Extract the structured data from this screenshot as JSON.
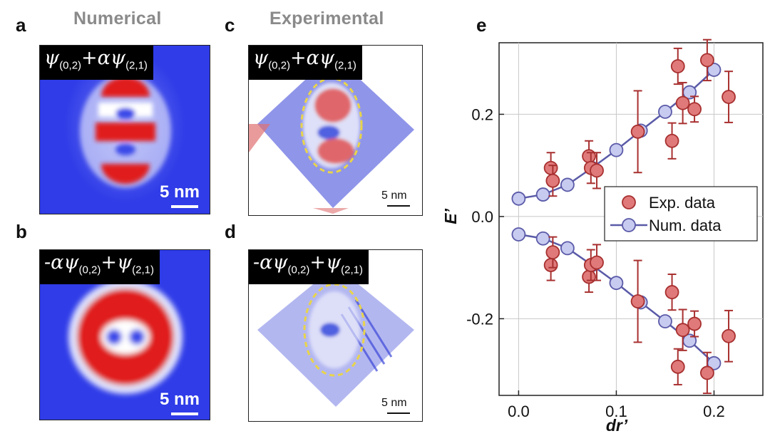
{
  "panels": {
    "a": {
      "letter": "a",
      "column_title": "Numerical",
      "formula_left": "ψ",
      "formula_left_sub": "(0,2)",
      "formula_right": "+αψ",
      "formula_right_sub": "(2,1)",
      "scale": "5 nm"
    },
    "b": {
      "letter": "b",
      "formula_left": "-αψ",
      "formula_left_sub": "(0,2)",
      "formula_right": "+ψ",
      "formula_right_sub": "(2,1)",
      "scale": "5 nm"
    },
    "c": {
      "letter": "c",
      "column_title": "Experimental",
      "formula_left": "ψ",
      "formula_left_sub": "(0,2)",
      "formula_right": "+αψ",
      "formula_right_sub": "(2,1)",
      "scale": "5 nm"
    },
    "d": {
      "letter": "d",
      "formula_left": "-αψ",
      "formula_left_sub": "(0,2)",
      "formula_right": "+ψ",
      "formula_right_sub": "(2,1)",
      "scale": "5 nm"
    }
  },
  "colors": {
    "map_blue": "#2f3ce8",
    "map_red": "#e01a1a",
    "exp_fill": "#e07a7a",
    "exp_edge": "#a83030",
    "num_fill": "#c8cbf0",
    "num_line": "#5a5aa8",
    "ellipse": "#e8d44a"
  },
  "chart_data": {
    "panel": "e",
    "type": "scatter",
    "xlabel": "dr’",
    "ylabel": "E’",
    "xlim": [
      -0.02,
      0.25
    ],
    "ylim": [
      -0.35,
      0.34
    ],
    "xticks": [
      0.0,
      0.1,
      0.2
    ],
    "xtick_labels": [
      "0.0",
      "0.1",
      "0.2"
    ],
    "yticks": [
      -0.2,
      0.0,
      0.2
    ],
    "ytick_labels": [
      "-0.2",
      "0.0",
      "0.2"
    ],
    "grid": true,
    "legend_position": "center-right",
    "series": [
      {
        "name": "Exp. data",
        "kind": "points-with-error",
        "points": [
          {
            "x": 0.033,
            "y": 0.095,
            "err": 0.03
          },
          {
            "x": 0.035,
            "y": 0.07,
            "err": 0.03
          },
          {
            "x": 0.072,
            "y": 0.118,
            "err": 0.03
          },
          {
            "x": 0.074,
            "y": 0.095,
            "err": 0.03
          },
          {
            "x": 0.08,
            "y": 0.09,
            "err": 0.035
          },
          {
            "x": 0.122,
            "y": 0.166,
            "err": 0.08
          },
          {
            "x": 0.157,
            "y": 0.148,
            "err": 0.035
          },
          {
            "x": 0.163,
            "y": 0.294,
            "err": 0.035
          },
          {
            "x": 0.168,
            "y": 0.222,
            "err": 0.04
          },
          {
            "x": 0.18,
            "y": 0.21,
            "err": 0.025
          },
          {
            "x": 0.193,
            "y": 0.306,
            "err": 0.04
          },
          {
            "x": 0.215,
            "y": 0.234,
            "err": 0.05
          },
          {
            "x": 0.033,
            "y": -0.095,
            "err": 0.03
          },
          {
            "x": 0.035,
            "y": -0.07,
            "err": 0.03
          },
          {
            "x": 0.072,
            "y": -0.118,
            "err": 0.03
          },
          {
            "x": 0.074,
            "y": -0.095,
            "err": 0.03
          },
          {
            "x": 0.08,
            "y": -0.09,
            "err": 0.035
          },
          {
            "x": 0.122,
            "y": -0.166,
            "err": 0.08
          },
          {
            "x": 0.157,
            "y": -0.148,
            "err": 0.035
          },
          {
            "x": 0.163,
            "y": -0.294,
            "err": 0.035
          },
          {
            "x": 0.168,
            "y": -0.222,
            "err": 0.04
          },
          {
            "x": 0.18,
            "y": -0.21,
            "err": 0.025
          },
          {
            "x": 0.193,
            "y": -0.306,
            "err": 0.04
          },
          {
            "x": 0.215,
            "y": -0.234,
            "err": 0.05
          }
        ]
      },
      {
        "name": "Num. data",
        "kind": "line-with-markers",
        "branches": [
          {
            "x": [
              0.0,
              0.025,
              0.05,
              0.075,
              0.1,
              0.125,
              0.15,
              0.175,
              0.2
            ],
            "y": [
              0.035,
              0.043,
              0.062,
              0.095,
              0.13,
              0.168,
              0.205,
              0.243,
              0.287
            ]
          },
          {
            "x": [
              0.0,
              0.025,
              0.05,
              0.075,
              0.1,
              0.125,
              0.15,
              0.175,
              0.2
            ],
            "y": [
              -0.035,
              -0.043,
              -0.062,
              -0.095,
              -0.13,
              -0.168,
              -0.205,
              -0.243,
              -0.287
            ]
          }
        ]
      }
    ]
  }
}
